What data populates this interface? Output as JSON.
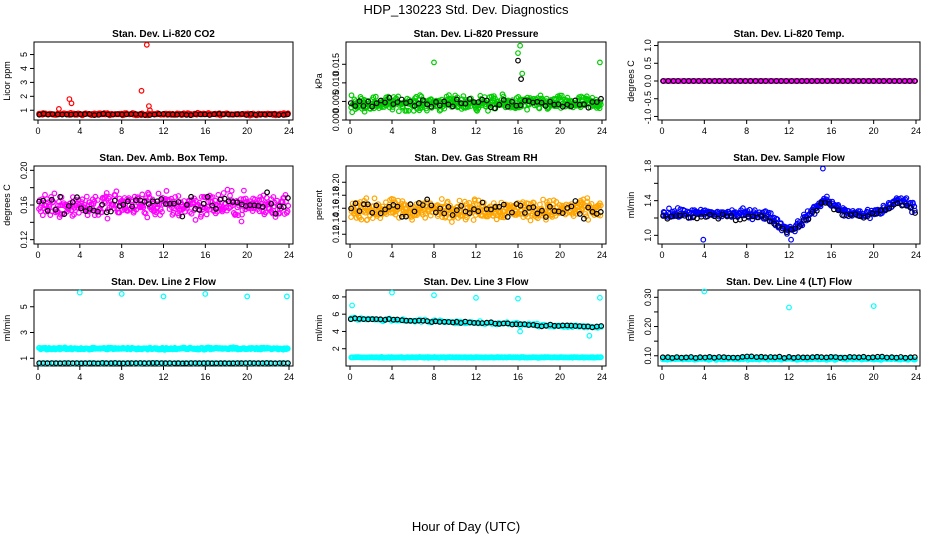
{
  "figure": {
    "title": "HDP_130223  Std. Dev. Diagnostics",
    "xlabel": "Hour of Day (UTC)"
  },
  "chart_data": [
    {
      "type": "scatter",
      "title": "Stan. Dev. Li-820 CO2",
      "ylabel": "Licor ppm",
      "xlim": [
        0,
        24
      ],
      "ylim": [
        0.3,
        5.9
      ],
      "xticks": [
        0,
        4,
        8,
        12,
        16,
        20,
        24
      ],
      "yticks": [
        1,
        2,
        3,
        4,
        5
      ],
      "series": [
        {
          "color": "#ff0000",
          "base": 0.72,
          "noise": 0.12,
          "count": 230,
          "extra": [
            [
              9.9,
              2.4
            ],
            [
              10.4,
              5.7
            ],
            [
              10.6,
              1.3
            ],
            [
              10.7,
              1.0
            ],
            [
              3.0,
              1.8
            ],
            [
              3.2,
              1.5
            ],
            [
              2.0,
              1.1
            ]
          ]
        },
        {
          "color": "#000000",
          "base": 0.7,
          "noise": 0.08,
          "count": 55,
          "extra": []
        }
      ]
    },
    {
      "type": "scatter",
      "title": "Stan. Dev. Li-820 Pressure",
      "ylabel": "kPa",
      "xlim": [
        0,
        24
      ],
      "ylim": [
        0.0,
        0.021
      ],
      "xticks": [
        0,
        4,
        8,
        12,
        16,
        20,
        24
      ],
      "yticks": [
        0.0,
        0.005,
        0.01,
        0.015
      ],
      "ytick_labels": [
        "0.000",
        "0.005",
        "0.010",
        "0.015"
      ],
      "series": [
        {
          "color": "#00cc00",
          "base": 0.0045,
          "noise": 0.0028,
          "count": 430,
          "extra": [
            [
              8.0,
              0.0155
            ],
            [
              16.0,
              0.018
            ],
            [
              16.2,
              0.02
            ],
            [
              16.4,
              0.0125
            ],
            [
              23.8,
              0.0155
            ]
          ]
        },
        {
          "color": "#000000",
          "base": 0.0045,
          "noise": 0.0022,
          "count": 60,
          "extra": [
            [
              16.0,
              0.016
            ],
            [
              16.3,
              0.011
            ]
          ]
        }
      ]
    },
    {
      "type": "scatter",
      "title": "Stan. Dev. Li-820 Temp.",
      "ylabel": "degrees C",
      "xlim": [
        0,
        24
      ],
      "ylim": [
        -1.1,
        1.1
      ],
      "xticks": [
        0,
        4,
        8,
        12,
        16,
        20,
        24
      ],
      "yticks": [
        -1.0,
        -0.5,
        0.0,
        0.5,
        1.0
      ],
      "ytick_labels": [
        "-1.0",
        "-0.5",
        "0.0",
        "0.5",
        "1.0"
      ],
      "series": [
        {
          "color": "#ff00ff",
          "base": 0.0,
          "noise": 0.0,
          "count": 200,
          "extra": []
        },
        {
          "color": "#000000",
          "base": 0.0,
          "noise": 0.0,
          "count": 50,
          "extra": []
        }
      ]
    },
    {
      "type": "scatter",
      "title": "Stan. Dev. Amb. Box Temp.",
      "ylabel": "degrees C",
      "xlim": [
        0,
        24
      ],
      "ylim": [
        0.115,
        0.205
      ],
      "xticks": [
        0,
        4,
        8,
        12,
        16,
        20,
        24
      ],
      "yticks": [
        0.12,
        0.14,
        0.16,
        0.18,
        0.2
      ],
      "ytick_labels": [
        "0.12",
        "",
        "0.16",
        "",
        "0.20"
      ],
      "series": [
        {
          "color": "#ff00ff",
          "base": 0.16,
          "noise": 0.022,
          "count": 380,
          "extra": []
        },
        {
          "color": "#000000",
          "base": 0.16,
          "noise": 0.018,
          "count": 60,
          "extra": []
        }
      ]
    },
    {
      "type": "scatter",
      "title": "Stan. Dev. Gas Stream RH",
      "ylabel": "percent",
      "xlim": [
        0,
        24
      ],
      "ylim": [
        0.105,
        0.225
      ],
      "xticks": [
        0,
        4,
        8,
        12,
        16,
        20,
        24
      ],
      "yticks": [
        0.12,
        0.14,
        0.16,
        0.18,
        0.2
      ],
      "ytick_labels": [
        "0.12",
        "0.14",
        "0.16",
        "0.18",
        "0.20"
      ],
      "series": [
        {
          "color": "#ffa500",
          "base": 0.158,
          "noise": 0.022,
          "count": 430,
          "extra": []
        },
        {
          "color": "#000000",
          "base": 0.158,
          "noise": 0.018,
          "count": 60,
          "extra": []
        }
      ]
    },
    {
      "type": "scatter",
      "title": "Stan. Dev. Sample Flow",
      "ylabel": "ml/min",
      "xlim": [
        0,
        24
      ],
      "ylim": [
        0.9,
        1.8
      ],
      "xticks": [
        0,
        4,
        8,
        12,
        16,
        20,
        24
      ],
      "yticks": [
        1.0,
        1.2,
        1.4,
        1.6,
        1.8
      ],
      "ytick_labels": [
        "1.0",
        "",
        "1.4",
        "",
        "1.8"
      ],
      "series": [
        {
          "color": "#0000ff",
          "base": 1.25,
          "noise": 0.08,
          "count": 330,
          "wave": true,
          "extra": [
            [
              15.2,
              1.77
            ],
            [
              3.9,
              0.95
            ],
            [
              12.2,
              0.95
            ]
          ]
        },
        {
          "color": "#000000",
          "base": 1.22,
          "noise": 0.06,
          "count": 60,
          "wave": true,
          "extra": []
        }
      ]
    },
    {
      "type": "scatter",
      "title": "Stan. Dev. Line 2 Flow",
      "ylabel": "ml/min",
      "xlim": [
        0,
        24
      ],
      "ylim": [
        0.4,
        6.3
      ],
      "xticks": [
        0,
        4,
        8,
        12,
        16,
        20,
        24
      ],
      "yticks": [
        1,
        3,
        5
      ],
      "series": [
        {
          "color": "#00ffff",
          "base": 1.75,
          "noise": 0.12,
          "count": 320,
          "extra": [
            [
              4.0,
              6.1
            ],
            [
              8.0,
              6.0
            ],
            [
              12.0,
              5.8
            ],
            [
              16.0,
              6.0
            ],
            [
              20.0,
              5.8
            ],
            [
              23.8,
              5.8
            ]
          ]
        },
        {
          "color": "#00ffff",
          "base": 0.62,
          "noise": 0.03,
          "count": 120,
          "extra": []
        },
        {
          "color": "#000000",
          "base": 0.62,
          "noise": 0.02,
          "count": 60,
          "extra": []
        }
      ]
    },
    {
      "type": "scatter",
      "title": "Stan. Dev. Line 3 Flow",
      "ylabel": "ml/min",
      "xlim": [
        0,
        24
      ],
      "ylim": [
        0.0,
        8.8
      ],
      "xticks": [
        0,
        4,
        8,
        12,
        16,
        20,
        24
      ],
      "yticks": [
        2,
        4,
        6,
        8
      ],
      "series": [
        {
          "color": "#00ffff",
          "base": 5.5,
          "noise": 0.25,
          "count": 150,
          "trend": -1.0,
          "extra": [
            [
              0.2,
              7.0
            ],
            [
              4.0,
              8.5
            ],
            [
              8.0,
              8.2
            ],
            [
              12.0,
              7.9
            ],
            [
              16.0,
              7.8
            ],
            [
              23.8,
              7.9
            ],
            [
              16.2,
              4.0
            ],
            [
              22.8,
              3.5
            ]
          ]
        },
        {
          "color": "#00ffff",
          "base": 1.0,
          "noise": 0.06,
          "count": 220,
          "extra": []
        },
        {
          "color": "#000000",
          "base": 5.5,
          "noise": 0.15,
          "count": 60,
          "trend": -1.0,
          "extra": []
        }
      ]
    },
    {
      "type": "scatter",
      "title": "Stan. Dev. Line 4 (LT) Flow",
      "ylabel": "ml/min",
      "xlim": [
        0,
        24
      ],
      "ylim": [
        0.065,
        0.325
      ],
      "xticks": [
        0,
        4,
        8,
        12,
        16,
        20,
        24
      ],
      "yticks": [
        0.1,
        0.15,
        0.2,
        0.25,
        0.3
      ],
      "ytick_labels": [
        "0.10",
        "",
        "0.20",
        "",
        "0.30"
      ],
      "series": [
        {
          "color": "#00ffff",
          "base": 0.09,
          "noise": 0.006,
          "count": 300,
          "extra": [
            [
              4.0,
              0.32
            ],
            [
              12.0,
              0.265
            ],
            [
              20.0,
              0.27
            ]
          ]
        },
        {
          "color": "#000000",
          "base": 0.095,
          "noise": 0.004,
          "count": 55,
          "extra": []
        }
      ]
    }
  ]
}
